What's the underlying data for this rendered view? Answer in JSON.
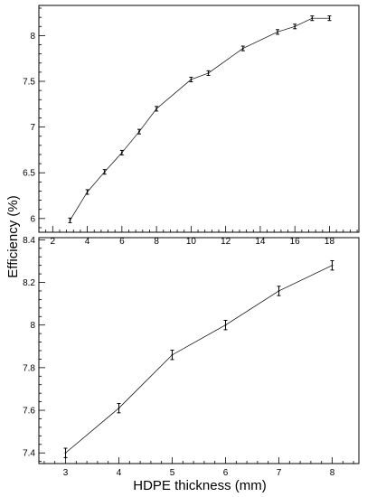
{
  "chart_data": [
    {
      "type": "line",
      "title": "",
      "xlabel": "",
      "ylabel": "",
      "xlim": [
        1.2,
        19.7
      ],
      "ylim": [
        5.85,
        8.33
      ],
      "xticks": [
        2,
        4,
        6,
        8,
        10,
        12,
        14,
        16,
        18
      ],
      "xtick_labels": [
        "2",
        "4",
        "6",
        "8",
        "10",
        "12",
        "14",
        "16",
        "18"
      ],
      "yticks": [
        6,
        6.5,
        7,
        7.5,
        8
      ],
      "ytick_labels": [
        "6",
        "6.5",
        "7",
        "7.5",
        "8"
      ],
      "grid": false,
      "error_bars": true,
      "series": [
        {
          "x": [
            3,
            4,
            5,
            6,
            7,
            8,
            10,
            11,
            13,
            15,
            16,
            17,
            18
          ],
          "y": [
            5.98,
            6.29,
            6.51,
            6.72,
            6.95,
            7.2,
            7.52,
            7.59,
            7.86,
            8.04,
            8.1,
            8.19,
            8.19
          ],
          "yerr": [
            0.025,
            0.025,
            0.025,
            0.025,
            0.025,
            0.025,
            0.025,
            0.025,
            0.025,
            0.025,
            0.025,
            0.025,
            0.025
          ]
        }
      ]
    },
    {
      "type": "line",
      "title": "",
      "xlabel": "HDPE thickness (mm)",
      "ylabel": "Efficiency (%)",
      "xlim": [
        2.5,
        8.5
      ],
      "ylim": [
        7.35,
        8.41
      ],
      "xticks": [
        3,
        4,
        5,
        6,
        7,
        8
      ],
      "xtick_labels": [
        "3",
        "4",
        "5",
        "6",
        "7",
        "8"
      ],
      "yticks": [
        7.4,
        7.6,
        7.8,
        8,
        8.2,
        8.4
      ],
      "ytick_labels": [
        "7.4",
        "7.6",
        "7.8",
        "8",
        "8.2",
        "8.4"
      ],
      "grid": false,
      "error_bars": true,
      "series": [
        {
          "x": [
            3,
            4,
            5,
            6,
            7,
            8
          ],
          "y": [
            7.4,
            7.61,
            7.86,
            8.0,
            8.16,
            8.28
          ],
          "yerr": [
            0.022,
            0.022,
            0.022,
            0.022,
            0.022,
            0.022
          ]
        }
      ]
    }
  ]
}
